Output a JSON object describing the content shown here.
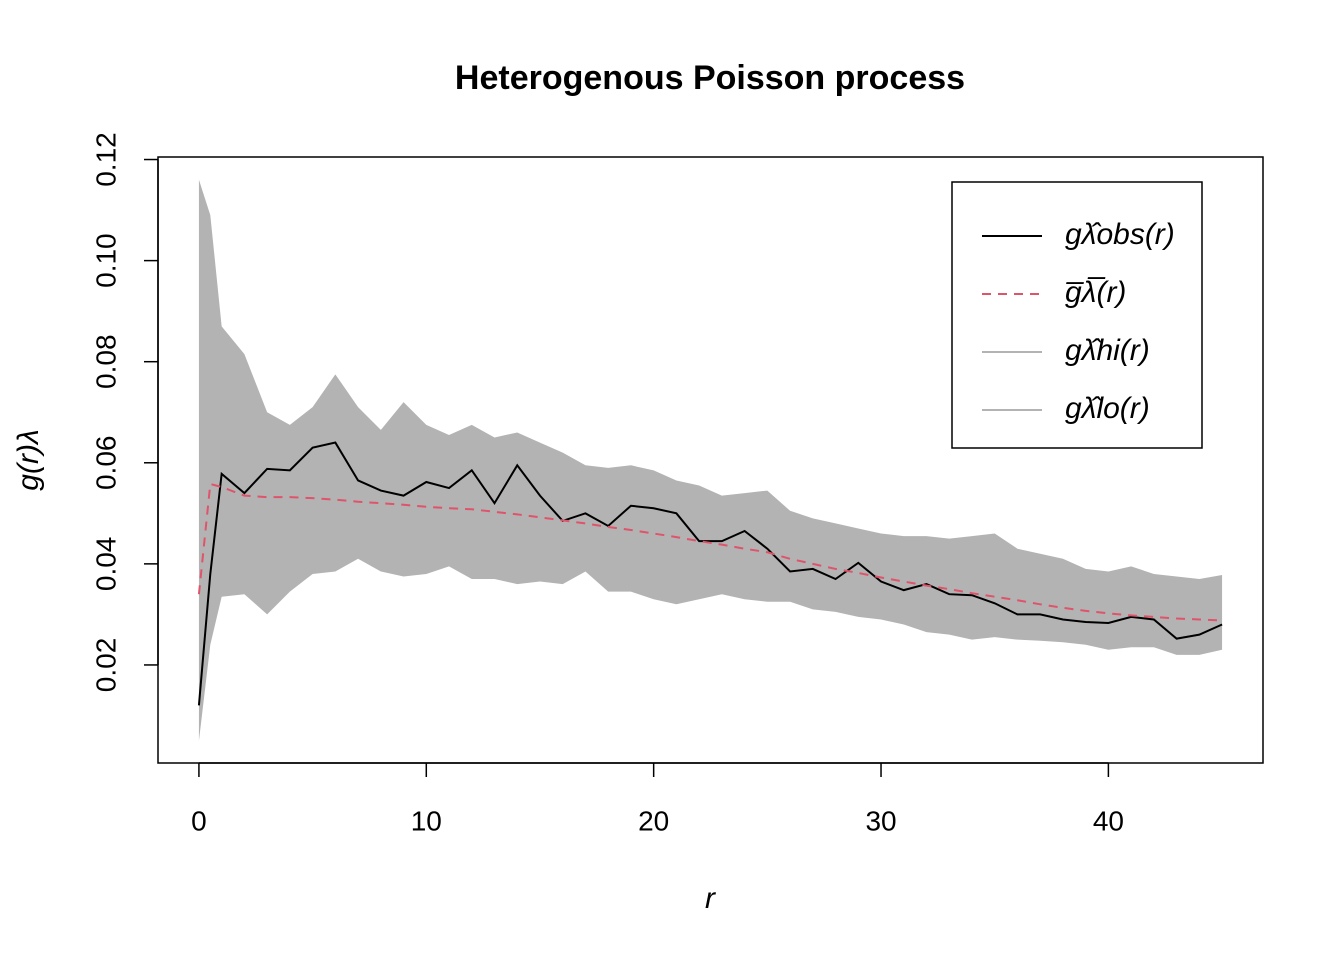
{
  "chart_data": {
    "type": "line",
    "title": "Heterogenous Poisson process",
    "x_label": "r",
    "y_label": "g(r)λ",
    "x": [
      0,
      0.5,
      1,
      2,
      3,
      4,
      5,
      6,
      7,
      8,
      9,
      10,
      11,
      12,
      13,
      14,
      15,
      16,
      17,
      18,
      19,
      20,
      21,
      22,
      23,
      24,
      25,
      26,
      27,
      28,
      29,
      30,
      31,
      32,
      33,
      34,
      35,
      36,
      37,
      38,
      39,
      40,
      41,
      42,
      43,
      44,
      45
    ],
    "series": [
      {
        "name": "gλ̂obs(r)",
        "color": "#000000",
        "dash": false,
        "values": [
          0.012,
          0.038,
          0.0578,
          0.054,
          0.0588,
          0.0585,
          0.063,
          0.064,
          0.0565,
          0.0545,
          0.0535,
          0.0562,
          0.055,
          0.0585,
          0.052,
          0.0595,
          0.0535,
          0.0485,
          0.05,
          0.0475,
          0.0515,
          0.051,
          0.05,
          0.0445,
          0.0445,
          0.0465,
          0.043,
          0.0385,
          0.039,
          0.037,
          0.0402,
          0.0365,
          0.0348,
          0.036,
          0.034,
          0.0338,
          0.0322,
          0.03,
          0.03,
          0.029,
          0.0285,
          0.0283,
          0.0295,
          0.029,
          0.0252,
          0.026,
          0.028
        ]
      },
      {
        "name": "g̅λ̅(r)",
        "color": "#df536b",
        "dash": true,
        "values": [
          0.034,
          0.0558,
          0.0552,
          0.0535,
          0.0532,
          0.0532,
          0.053,
          0.0527,
          0.0523,
          0.052,
          0.0517,
          0.0513,
          0.051,
          0.0508,
          0.0503,
          0.0498,
          0.0492,
          0.0486,
          0.048,
          0.0473,
          0.0467,
          0.046,
          0.0453,
          0.0445,
          0.0438,
          0.043,
          0.0423,
          0.041,
          0.04,
          0.039,
          0.0382,
          0.0373,
          0.0365,
          0.0357,
          0.035,
          0.0342,
          0.0335,
          0.0328,
          0.032,
          0.0313,
          0.0307,
          0.0302,
          0.0298,
          0.0295,
          0.0292,
          0.029,
          0.0288
        ]
      },
      {
        "name": "gλ̂hi(r)",
        "color": "#b3b3b3",
        "band": true,
        "values": [
          0.116,
          0.109,
          0.087,
          0.0815,
          0.07,
          0.0675,
          0.071,
          0.0775,
          0.071,
          0.0665,
          0.072,
          0.0675,
          0.0655,
          0.0675,
          0.065,
          0.066,
          0.064,
          0.062,
          0.0595,
          0.059,
          0.0595,
          0.0585,
          0.0565,
          0.0555,
          0.0535,
          0.054,
          0.0545,
          0.0505,
          0.049,
          0.048,
          0.047,
          0.046,
          0.0455,
          0.0455,
          0.045,
          0.0455,
          0.046,
          0.043,
          0.042,
          0.041,
          0.039,
          0.0385,
          0.0395,
          0.038,
          0.0375,
          0.037,
          0.0378
        ]
      },
      {
        "name": "gλ̂lo(r)",
        "color": "#b3b3b3",
        "band": true,
        "values": [
          0.005,
          0.024,
          0.0335,
          0.034,
          0.03,
          0.0345,
          0.038,
          0.0385,
          0.041,
          0.0385,
          0.0375,
          0.038,
          0.0395,
          0.037,
          0.037,
          0.036,
          0.0365,
          0.036,
          0.0385,
          0.0345,
          0.0345,
          0.033,
          0.032,
          0.033,
          0.034,
          0.033,
          0.0325,
          0.0325,
          0.031,
          0.0305,
          0.0295,
          0.029,
          0.028,
          0.0265,
          0.026,
          0.025,
          0.0255,
          0.025,
          0.0248,
          0.0245,
          0.024,
          0.023,
          0.0235,
          0.0235,
          0.022,
          0.022,
          0.023
        ]
      }
    ],
    "xlim": [
      -1.8,
      46.8
    ],
    "xticks": [
      0,
      10,
      20,
      30,
      40
    ],
    "ylim": [
      0.0006,
      0.1205
    ],
    "yticks": [
      0.02,
      0.04,
      0.06,
      0.08,
      {
        "value": 0.1,
        "label": "0.10"
      },
      0.12
    ],
    "legend": "top-right",
    "grid": false
  }
}
